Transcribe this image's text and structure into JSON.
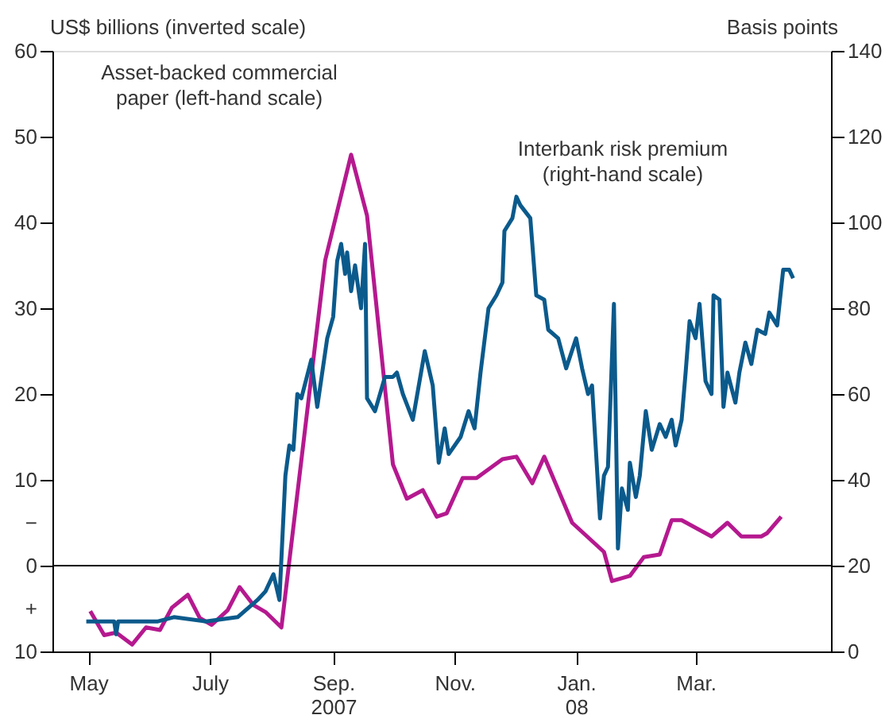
{
  "chart_data": {
    "type": "line",
    "ylabel": "US$ billions (inverted scale)",
    "y2label": "Basis points",
    "xlim": [
      "2007-04-13",
      "2008-05-08"
    ],
    "xticks": [
      {
        "value": "2007-05-01",
        "label": "May"
      },
      {
        "value": "2007-07-01",
        "label": "July"
      },
      {
        "value": "2007-09-01",
        "label": "Sep.\n2007"
      },
      {
        "value": "2007-11-01",
        "label": "Nov."
      },
      {
        "value": "2008-01-01",
        "label": "Jan.\n08"
      },
      {
        "value": "2008-03-01",
        "label": "Mar."
      }
    ],
    "ylim": [
      10,
      -60
    ],
    "yticks": [
      {
        "value": -60,
        "label": "60"
      },
      {
        "value": -50,
        "label": "50"
      },
      {
        "value": -40,
        "label": "40"
      },
      {
        "value": -30,
        "label": "30"
      },
      {
        "value": -20,
        "label": "20"
      },
      {
        "value": -10,
        "label": "10"
      },
      {
        "value": -5,
        "label": "−"
      },
      0,
      {
        "value": 5,
        "label": "+"
      },
      {
        "value": 10,
        "label": "10"
      }
    ],
    "y2lim": [
      0,
      140
    ],
    "y2ticks": [
      0,
      20,
      40,
      60,
      80,
      100,
      120,
      140
    ],
    "grid": false,
    "legend": false,
    "line_style": "solid",
    "ref_lines": [
      {
        "axis": "y",
        "value": 0,
        "color": "#000000"
      }
    ],
    "series": [
      {
        "name": "Asset-backed commercial paper (left-hand scale)",
        "color": "#b5198f",
        "x": [
          "2007-05-02",
          "2007-05-09",
          "2007-05-15",
          "2007-05-23",
          "2007-05-30",
          "2007-06-06",
          "2007-06-12",
          "2007-06-20",
          "2007-06-26",
          "2007-07-02",
          "2007-07-10",
          "2007-07-16",
          "2007-07-23",
          "2007-07-29",
          "2007-08-06",
          "2007-08-28",
          "2007-09-10",
          "2007-09-18",
          "2007-10-01",
          "2007-10-08",
          "2007-10-16",
          "2007-10-23",
          "2007-10-28",
          "2007-11-05",
          "2007-11-12",
          "2007-11-25",
          "2007-12-02",
          "2007-12-10",
          "2007-12-16",
          "2007-12-30",
          "2008-01-15",
          "2008-01-19",
          "2008-01-28",
          "2008-02-04",
          "2008-02-12",
          "2008-02-18",
          "2008-02-23",
          "2008-03-09",
          "2008-03-17",
          "2008-03-24",
          "2008-04-03",
          "2008-04-06",
          "2008-04-13"
        ],
        "values": [
          5.3,
          8.1,
          7.8,
          9.2,
          7.2,
          7.5,
          4.9,
          3.4,
          6.1,
          6.9,
          5.2,
          2.5,
          4.6,
          5.4,
          7.2,
          -35.6,
          -47.9,
          -40.8,
          -11.8,
          -7.8,
          -8.8,
          -5.7,
          -6.1,
          -10.2,
          -10.2,
          -12.4,
          -12.7,
          -9.6,
          -12.7,
          -5.0,
          -1.6,
          1.8,
          1.2,
          -1.0,
          -1.3,
          -5.3,
          -5.3,
          -3.4,
          -5.0,
          -3.4,
          -3.4,
          -3.8,
          -5.7
        ]
      },
      {
        "name": "Interbank risk premium (right-hand scale)",
        "color": "#0b5a8c",
        "axis": "y2",
        "x": [
          "2007-04-30",
          "2007-05-04",
          "2007-05-14",
          "2007-05-15",
          "2007-05-16",
          "2007-06-05",
          "2007-06-13",
          "2007-06-29",
          "2007-07-15",
          "2007-07-25",
          "2007-07-29",
          "2007-08-02",
          "2007-08-05",
          "2007-08-08",
          "2007-08-10",
          "2007-08-12",
          "2007-08-14",
          "2007-08-16",
          "2007-08-21",
          "2007-08-24",
          "2007-08-29",
          "2007-09-01",
          "2007-09-03",
          "2007-09-05",
          "2007-09-07",
          "2007-09-08",
          "2007-09-10",
          "2007-09-12",
          "2007-09-15",
          "2007-09-17",
          "2007-09-18",
          "2007-09-22",
          "2007-09-27",
          "2007-10-01",
          "2007-10-03",
          "2007-10-06",
          "2007-10-11",
          "2007-10-17",
          "2007-10-21",
          "2007-10-24",
          "2007-10-27",
          "2007-10-29",
          "2007-11-04",
          "2007-11-08",
          "2007-11-11",
          "2007-11-14",
          "2007-11-18",
          "2007-11-22",
          "2007-11-25",
          "2007-11-26",
          "2007-11-30",
          "2007-12-02",
          "2007-12-04",
          "2007-12-09",
          "2007-12-12",
          "2007-12-16",
          "2007-12-18",
          "2007-12-23",
          "2007-12-27",
          "2008-01-01",
          "2008-01-04",
          "2008-01-07",
          "2008-01-09",
          "2008-01-13",
          "2008-01-15",
          "2008-01-17",
          "2008-01-20",
          "2008-01-22",
          "2008-01-24",
          "2008-01-27",
          "2008-01-28",
          "2008-01-31",
          "2008-02-02",
          "2008-02-05",
          "2008-02-08",
          "2008-02-12",
          "2008-02-15",
          "2008-02-18",
          "2008-02-20",
          "2008-02-23",
          "2008-02-25",
          "2008-02-27",
          "2008-03-01",
          "2008-03-03",
          "2008-03-06",
          "2008-03-09",
          "2008-03-10",
          "2008-03-13",
          "2008-03-15",
          "2008-03-17",
          "2008-03-21",
          "2008-03-23",
          "2008-03-26",
          "2008-03-29",
          "2008-04-01",
          "2008-04-05",
          "2008-04-07",
          "2008-04-11",
          "2008-04-14",
          "2008-04-17",
          "2008-04-19"
        ],
        "values": [
          7,
          7,
          7,
          4,
          7,
          7,
          8,
          7,
          8,
          12,
          14,
          18,
          12,
          41,
          48,
          47,
          60,
          59,
          68,
          57,
          73,
          78,
          91,
          95,
          88,
          93,
          84,
          90,
          80,
          95,
          59,
          56,
          64,
          64,
          65,
          60,
          54,
          70,
          62,
          44,
          52,
          46,
          50,
          56,
          52,
          65,
          80,
          83,
          86,
          98,
          101,
          106,
          104,
          101,
          83,
          82,
          75,
          73,
          66,
          73,
          66,
          60,
          62,
          31,
          41,
          43,
          81,
          24,
          38,
          33,
          44,
          36,
          41,
          56,
          47,
          53,
          50,
          54,
          48,
          54,
          65,
          77,
          73,
          81,
          63,
          60,
          83,
          82,
          57,
          65,
          58,
          65,
          72,
          67,
          75,
          74,
          79,
          76,
          89,
          89,
          87
        ]
      }
    ]
  }
}
